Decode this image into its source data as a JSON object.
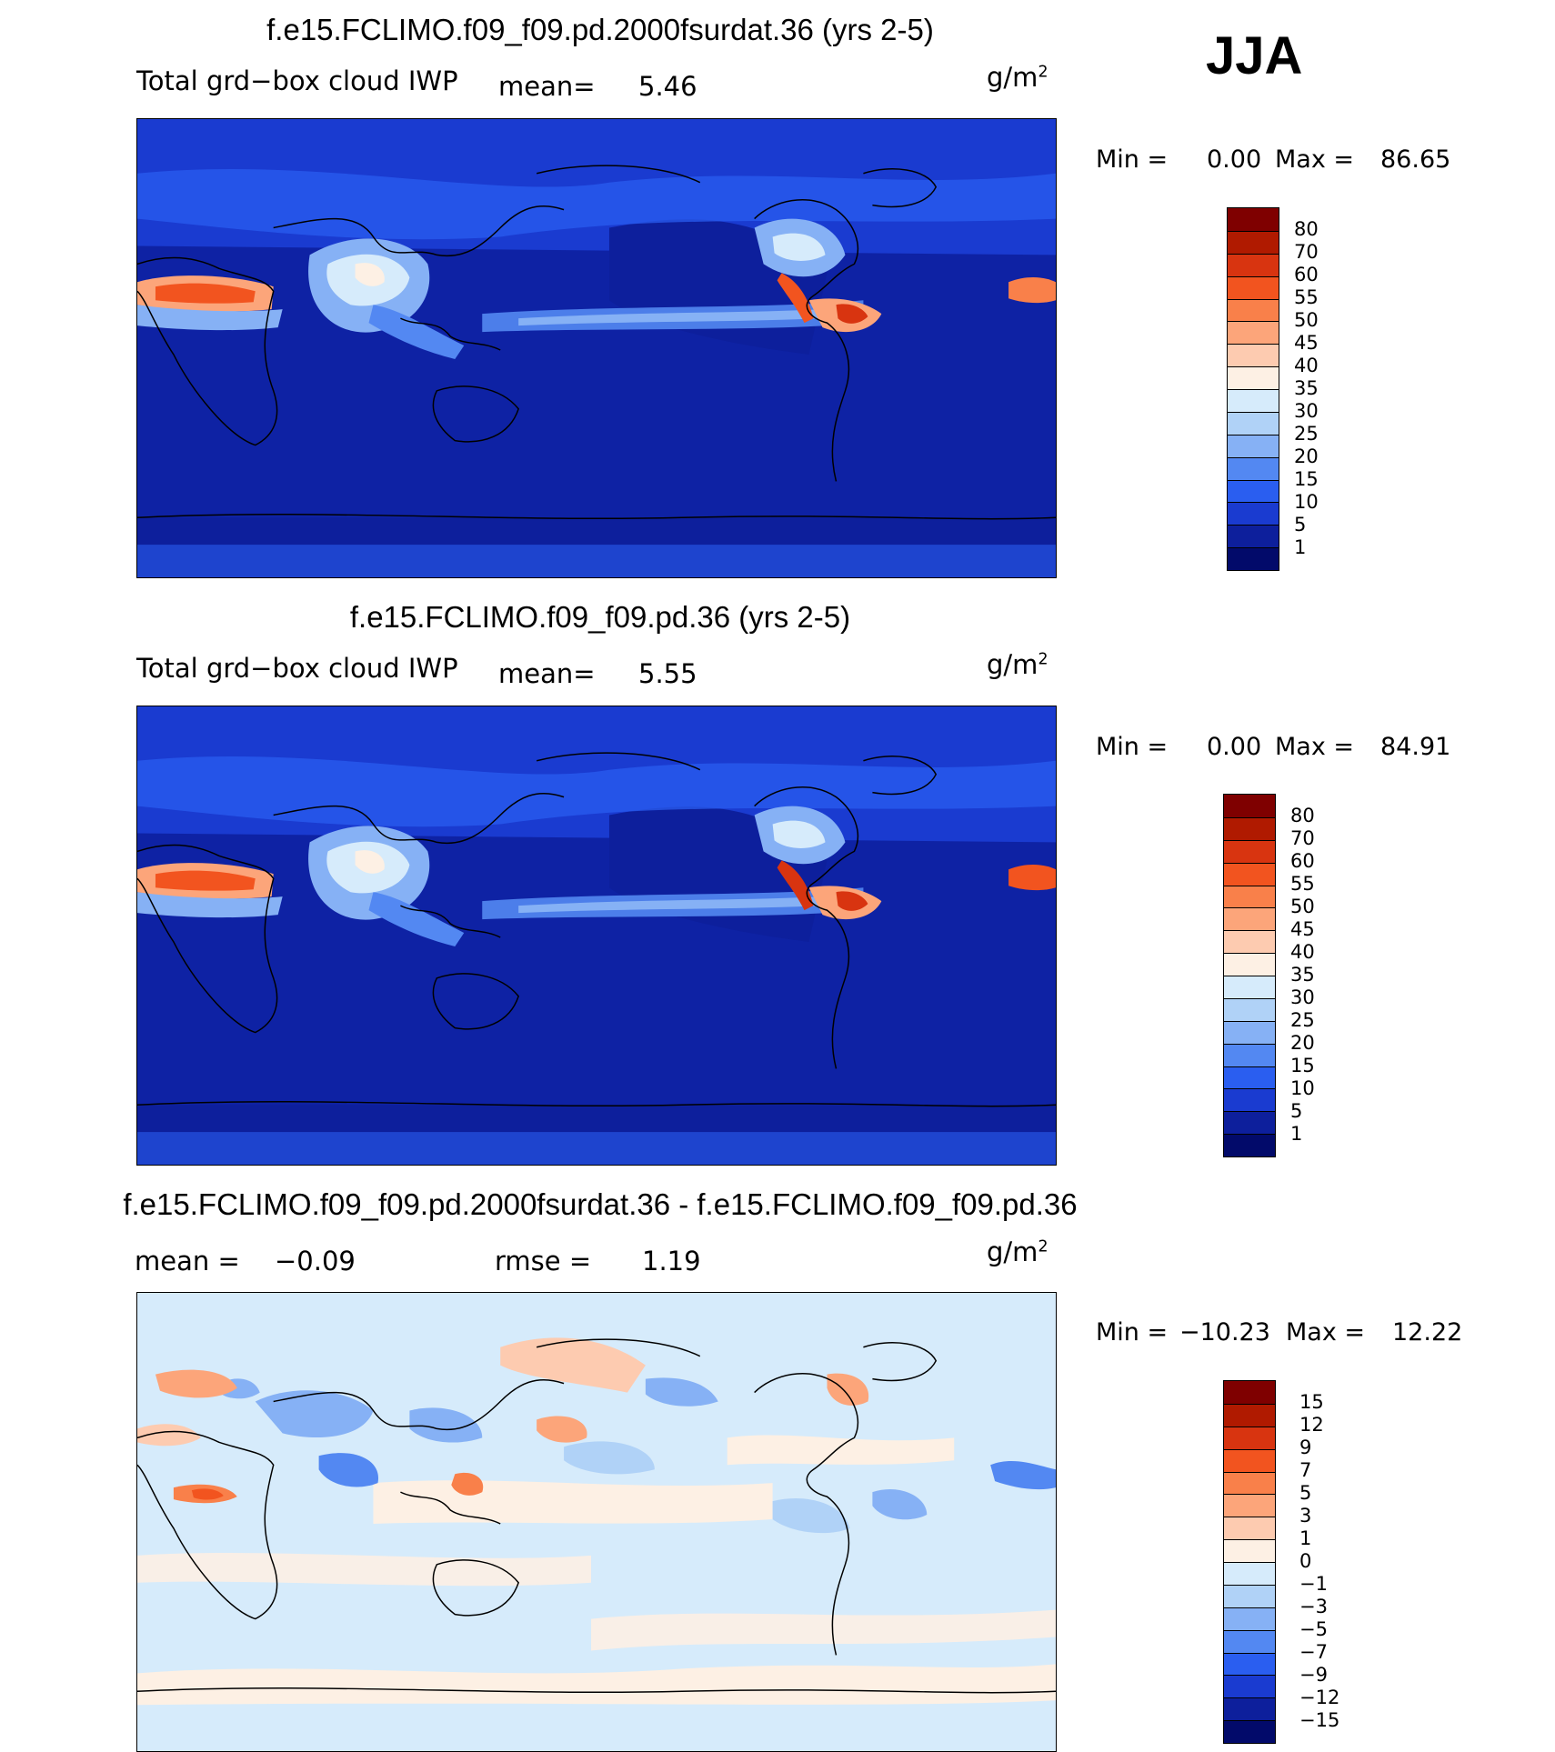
{
  "season": "JJA",
  "panels": [
    {
      "title": "f.e15.FCLIMO.f09_f09.pd.2000fsurdat.36 (yrs 2-5)",
      "variable": "Total grd−box cloud IWP",
      "mean_label": "mean=",
      "mean_value": "5.46",
      "units": "g/m",
      "units_sup": "2",
      "min_label": "Min =",
      "min_value": "0.00",
      "max_label": "Max =",
      "max_value": "86.65",
      "colorbar_labels": [
        "80",
        "70",
        "60",
        "55",
        "50",
        "45",
        "40",
        "35",
        "30",
        "25",
        "20",
        "15",
        "10",
        "5",
        "1"
      ],
      "colorbar_colors": [
        "#7f0000",
        "#b01a00",
        "#d83410",
        "#f2541f",
        "#f9804a",
        "#fca57a",
        "#fdcbb0",
        "#fdf0e4",
        "#d6ebfb",
        "#b0d2f7",
        "#86b1f5",
        "#5388f2",
        "#2a5ef0",
        "#1a3bd0",
        "#0d1f9c",
        "#020a6a"
      ]
    },
    {
      "title": "f.e15.FCLIMO.f09_f09.pd.36 (yrs 2-5)",
      "variable": "Total grd−box cloud IWP",
      "mean_label": "mean=",
      "mean_value": "5.55",
      "units": "g/m",
      "units_sup": "2",
      "min_label": "Min =",
      "min_value": "0.00",
      "max_label": "Max =",
      "max_value": "84.91",
      "colorbar_labels": [
        "80",
        "70",
        "60",
        "55",
        "50",
        "45",
        "40",
        "35",
        "30",
        "25",
        "20",
        "15",
        "10",
        "5",
        "1"
      ],
      "colorbar_colors": [
        "#7f0000",
        "#b01a00",
        "#d83410",
        "#f2541f",
        "#f9804a",
        "#fca57a",
        "#fdcbb0",
        "#fdf0e4",
        "#d6ebfb",
        "#b0d2f7",
        "#86b1f5",
        "#5388f2",
        "#2a5ef0",
        "#1a3bd0",
        "#0d1f9c",
        "#020a6a"
      ]
    },
    {
      "title": "f.e15.FCLIMO.f09_f09.pd.2000fsurdat.36 - f.e15.FCLIMO.f09_f09.pd.36",
      "mean_label": "mean =",
      "mean_value": "−0.09",
      "rmse_label": "rmse =",
      "rmse_value": "1.19",
      "units": "g/m",
      "units_sup": "2",
      "min_label": "Min =",
      "min_value": "−10.23",
      "max_label": "Max =",
      "max_value": "12.22",
      "colorbar_labels": [
        "15",
        "12",
        "9",
        "7",
        "5",
        "3",
        "1",
        "0",
        "−1",
        "−3",
        "−5",
        "−7",
        "−9",
        "−12",
        "−15"
      ],
      "colorbar_colors": [
        "#7f0000",
        "#b01a00",
        "#d83410",
        "#f2541f",
        "#f9804a",
        "#fca57a",
        "#fdcbb0",
        "#fdf0e4",
        "#d6ebfb",
        "#b0d2f7",
        "#86b1f5",
        "#5388f2",
        "#2a5ef0",
        "#1a3bd0",
        "#0d1f9c",
        "#020a6a"
      ]
    }
  ]
}
